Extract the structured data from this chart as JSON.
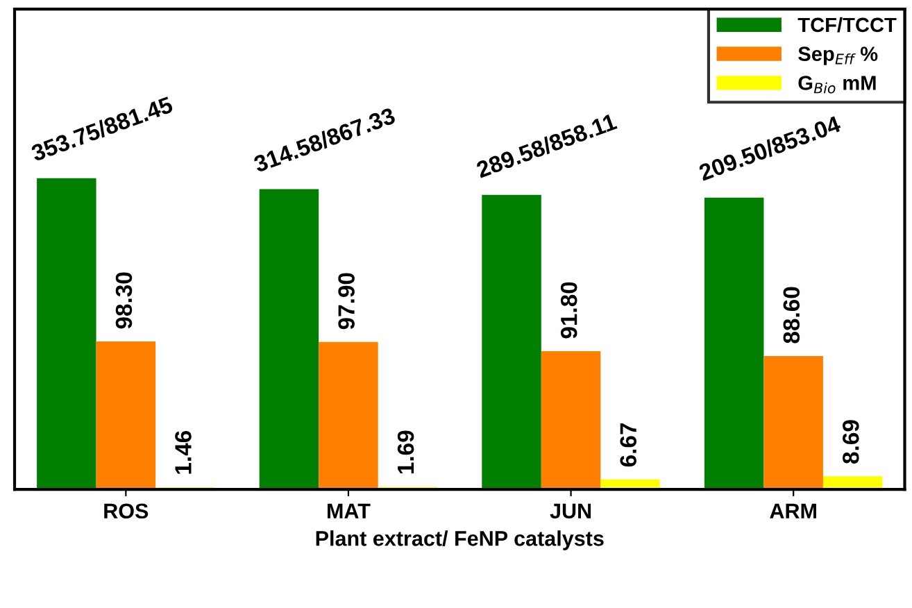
{
  "chart_data": {
    "type": "bar",
    "xlabel": "Plant extract/ FeNP catalysts",
    "categories": [
      "ROS",
      "MAT",
      "JUN",
      "ARM"
    ],
    "ylim": [
      0,
      319
    ],
    "legend": "top right",
    "tick_labels": "x",
    "series": [
      {
        "name": "TCF/TCCT",
        "color": "#007f00",
        "values": [
          206.7,
          199.4,
          195.7,
          193.8
        ],
        "value_labels": [
          "353.75/881.45",
          "314.58/867.33",
          "289.58/858.11",
          "209.50/853.04"
        ]
      },
      {
        "name": "Sep$_{Eff}$ %",
        "color": "#ff7f00",
        "values": [
          98.3,
          97.9,
          91.8,
          88.6
        ],
        "value_labels": [
          "98.30",
          "97.90",
          "91.80",
          "88.60"
        ]
      },
      {
        "name": "G$_{Bio}$ mM",
        "color": "#ffff00",
        "values": [
          1.46,
          1.69,
          6.67,
          8.69
        ],
        "value_labels": [
          "1.46",
          "1.69",
          "6.67",
          "8.69"
        ]
      }
    ]
  }
}
